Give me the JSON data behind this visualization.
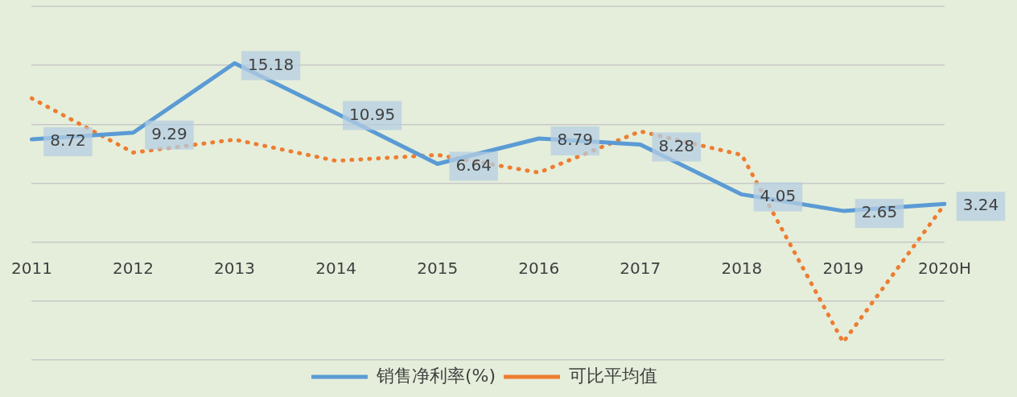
{
  "chart_data": {
    "type": "line",
    "categories": [
      "2011",
      "2012",
      "2013",
      "2014",
      "2015",
      "2016",
      "2017",
      "2018",
      "2019",
      "2020H"
    ],
    "series": [
      {
        "name": "销售净利率(%)",
        "color": "#5b9bd5",
        "line_style": "solid",
        "values": [
          8.72,
          9.29,
          15.18,
          10.95,
          6.64,
          8.79,
          8.28,
          4.05,
          2.65,
          3.24
        ],
        "value_labels": [
          "8.72",
          "9.29",
          "15.18",
          "10.95",
          "6.64",
          "8.79",
          "8.28",
          "4.05",
          "2.65",
          "3.24"
        ]
      },
      {
        "name": "可比平均值",
        "color": "#ed7d31",
        "line_style": "dotted",
        "values": [
          12.2,
          7.6,
          8.7,
          6.9,
          7.4,
          5.9,
          9.4,
          7.4,
          -8.5,
          3.2
        ]
      }
    ],
    "ylim": [
      -10,
      20
    ],
    "yticks": [
      {
        "value": -10,
        "label": null
      },
      {
        "value": -5,
        "label": null
      },
      {
        "value": 0,
        "label": null
      },
      {
        "value": 5,
        "label": null
      },
      {
        "value": 10,
        "label": null
      },
      {
        "value": 15,
        "label": null
      },
      {
        "value": 20,
        "label": null
      }
    ],
    "tick_labels": "x",
    "grid": "y",
    "legend": "bottom",
    "marker": "none"
  }
}
